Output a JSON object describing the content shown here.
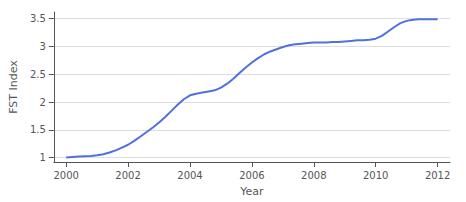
{
  "chart_data": {
    "type": "line",
    "xlabel": "Year",
    "ylabel": "FST Index",
    "x": [
      2000,
      2000.2,
      2000.4,
      2000.6,
      2000.8,
      2001,
      2001.2,
      2001.4,
      2001.6,
      2001.8,
      2002,
      2002.2,
      2002.4,
      2002.6,
      2002.8,
      2003,
      2003.2,
      2003.4,
      2003.6,
      2003.8,
      2004,
      2004.2,
      2004.4,
      2004.6,
      2004.8,
      2005,
      2005.2,
      2005.4,
      2005.6,
      2005.8,
      2006,
      2006.2,
      2006.4,
      2006.6,
      2006.8,
      2007,
      2007.2,
      2007.4,
      2007.6,
      2007.8,
      2008,
      2008.2,
      2008.4,
      2008.6,
      2008.8,
      2009,
      2009.2,
      2009.4,
      2009.6,
      2009.8,
      2010,
      2010.2,
      2010.4,
      2010.6,
      2010.8,
      2011,
      2011.2,
      2011.4,
      2011.6,
      2011.8,
      2012
    ],
    "values": [
      1.0,
      1.01,
      1.02,
      1.025,
      1.03,
      1.04,
      1.06,
      1.09,
      1.13,
      1.18,
      1.23,
      1.3,
      1.38,
      1.46,
      1.54,
      1.63,
      1.73,
      1.84,
      1.95,
      2.05,
      2.12,
      2.15,
      2.17,
      2.19,
      2.21,
      2.26,
      2.33,
      2.42,
      2.52,
      2.62,
      2.71,
      2.79,
      2.86,
      2.91,
      2.95,
      2.99,
      3.02,
      3.04,
      3.05,
      3.06,
      3.07,
      3.07,
      3.07,
      3.08,
      3.08,
      3.09,
      3.1,
      3.11,
      3.11,
      3.12,
      3.14,
      3.19,
      3.27,
      3.35,
      3.42,
      3.46,
      3.48,
      3.49,
      3.49,
      3.49,
      3.49
    ],
    "xlim": [
      1999.6,
      2012.4
    ],
    "xticks": [
      2000,
      2002,
      2004,
      2006,
      2008,
      2010,
      2012
    ],
    "ylim": [
      0.92,
      3.62
    ],
    "yticks": [
      1,
      1.5,
      2,
      2.5,
      3,
      3.5
    ],
    "grid": true
  }
}
